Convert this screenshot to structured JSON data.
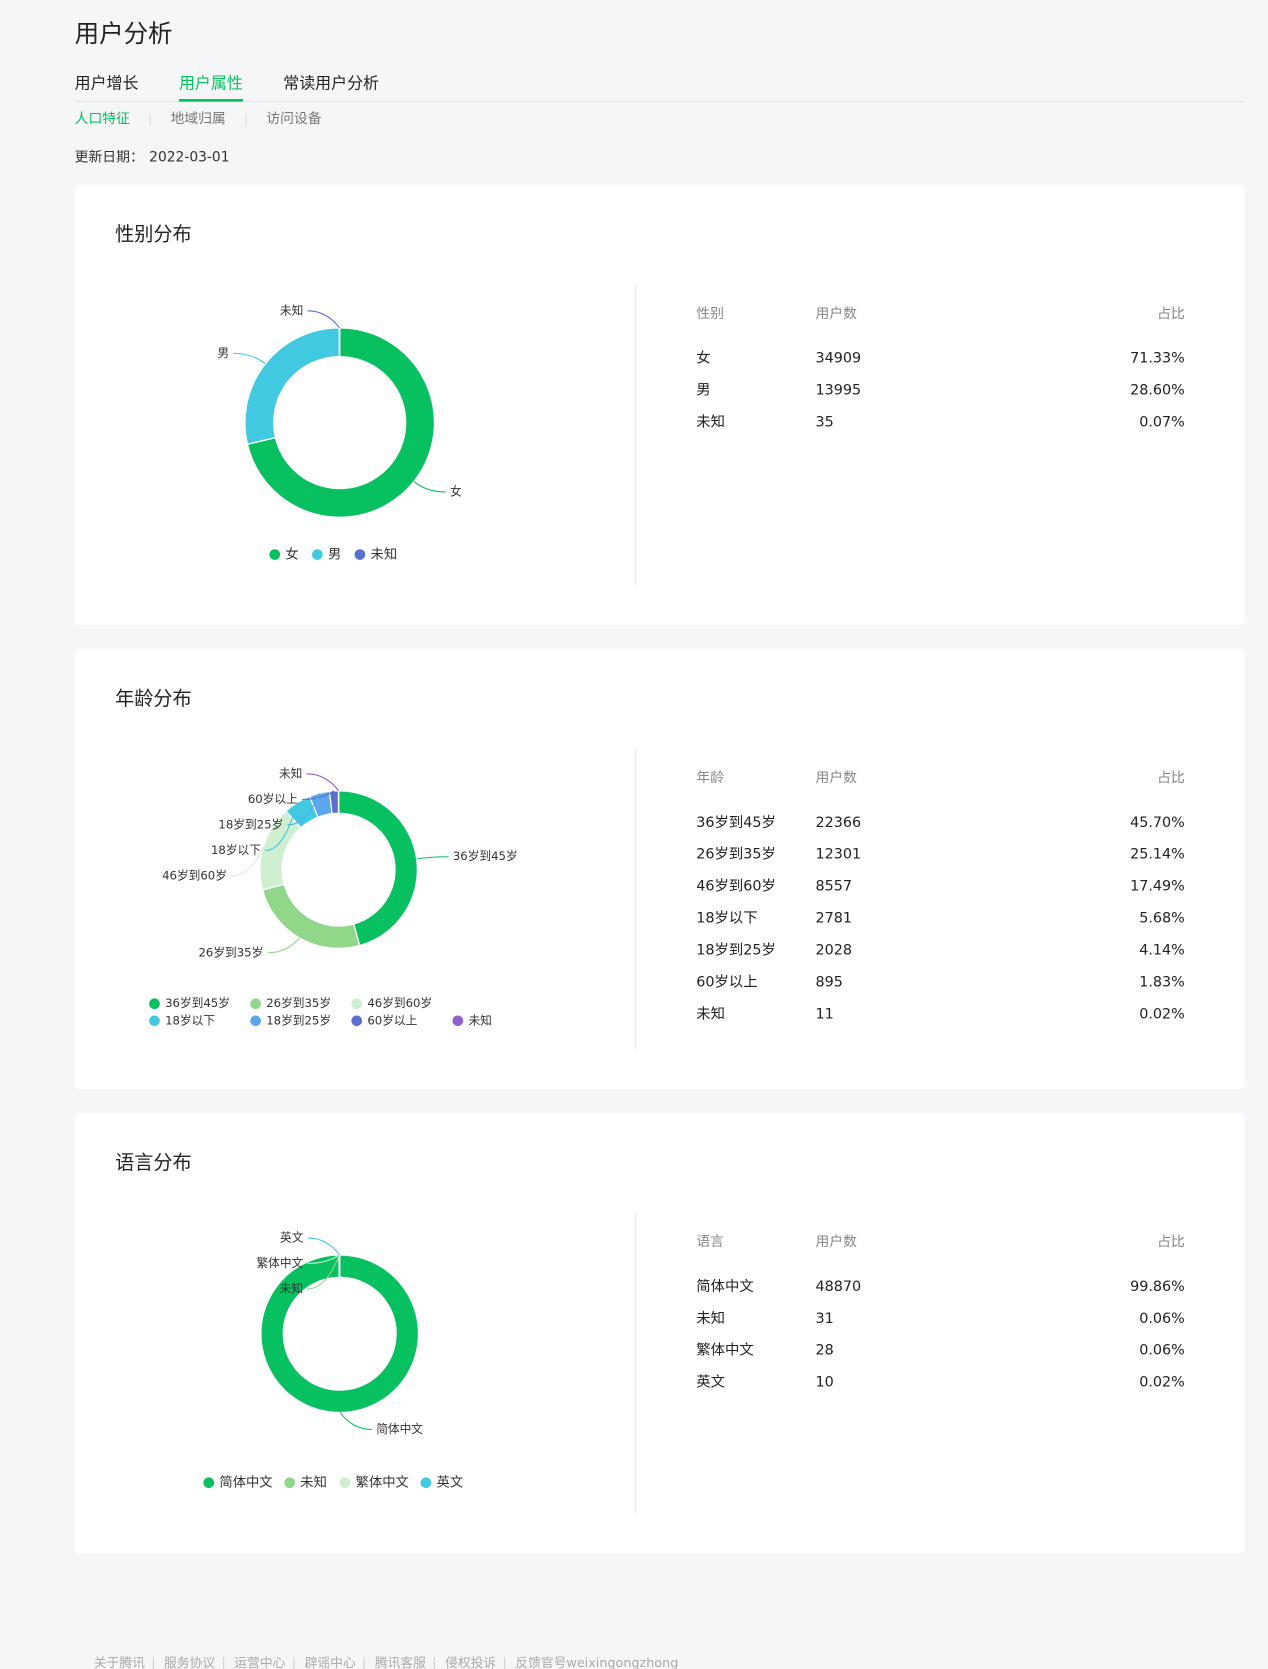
{
  "header": {
    "title": "用户分析",
    "tabs": [
      "用户增长",
      "用户属性",
      "常读用户分析"
    ],
    "subtabs": [
      "人口特征",
      "地域归属",
      "访问设备"
    ],
    "update_label": "更新日期：",
    "update_date": "2022-03-01"
  },
  "chart_data": [
    {
      "type": "pie",
      "title": "性别分布",
      "categories": [
        "女",
        "男",
        "未知"
      ],
      "values": [
        34909,
        13995,
        35
      ],
      "colors": [
        "#07c160",
        "#40c9e0",
        "#5b6fd0"
      ],
      "table": {
        "headers": [
          "性别",
          "用户数",
          "占比"
        ],
        "shares": [
          "71.33%",
          "28.60%",
          "0.07%"
        ]
      }
    },
    {
      "type": "pie",
      "title": "年龄分布",
      "categories": [
        "36岁到45岁",
        "26岁到35岁",
        "46岁到60岁",
        "18岁以下",
        "18岁到25岁",
        "60岁以上",
        "未知"
      ],
      "values": [
        22366,
        12301,
        8557,
        2781,
        2028,
        895,
        11
      ],
      "colors": [
        "#07c160",
        "#91d78a",
        "#d0efd0",
        "#40c9e0",
        "#5aa6ef",
        "#5b6fd0",
        "#8e5fcf"
      ],
      "table": {
        "headers": [
          "年龄",
          "用户数",
          "占比"
        ],
        "shares": [
          "45.70%",
          "25.14%",
          "17.49%",
          "5.68%",
          "4.14%",
          "1.83%",
          "0.02%"
        ]
      }
    },
    {
      "type": "pie",
      "title": "语言分布",
      "categories": [
        "简体中文",
        "未知",
        "繁体中文",
        "英文"
      ],
      "values": [
        48870,
        31,
        28,
        10
      ],
      "colors": [
        "#07c160",
        "#91d78a",
        "#d0efd0",
        "#40c9e0"
      ],
      "table": {
        "headers": [
          "语言",
          "用户数",
          "占比"
        ],
        "shares": [
          "99.86%",
          "0.06%",
          "0.06%",
          "0.02%"
        ]
      }
    }
  ],
  "footer": [
    "关于腾讯",
    "服务协议",
    "运营中心",
    "辟谣中心",
    "腾讯客服",
    "侵权投诉",
    "反馈官号weixingongzhong"
  ]
}
